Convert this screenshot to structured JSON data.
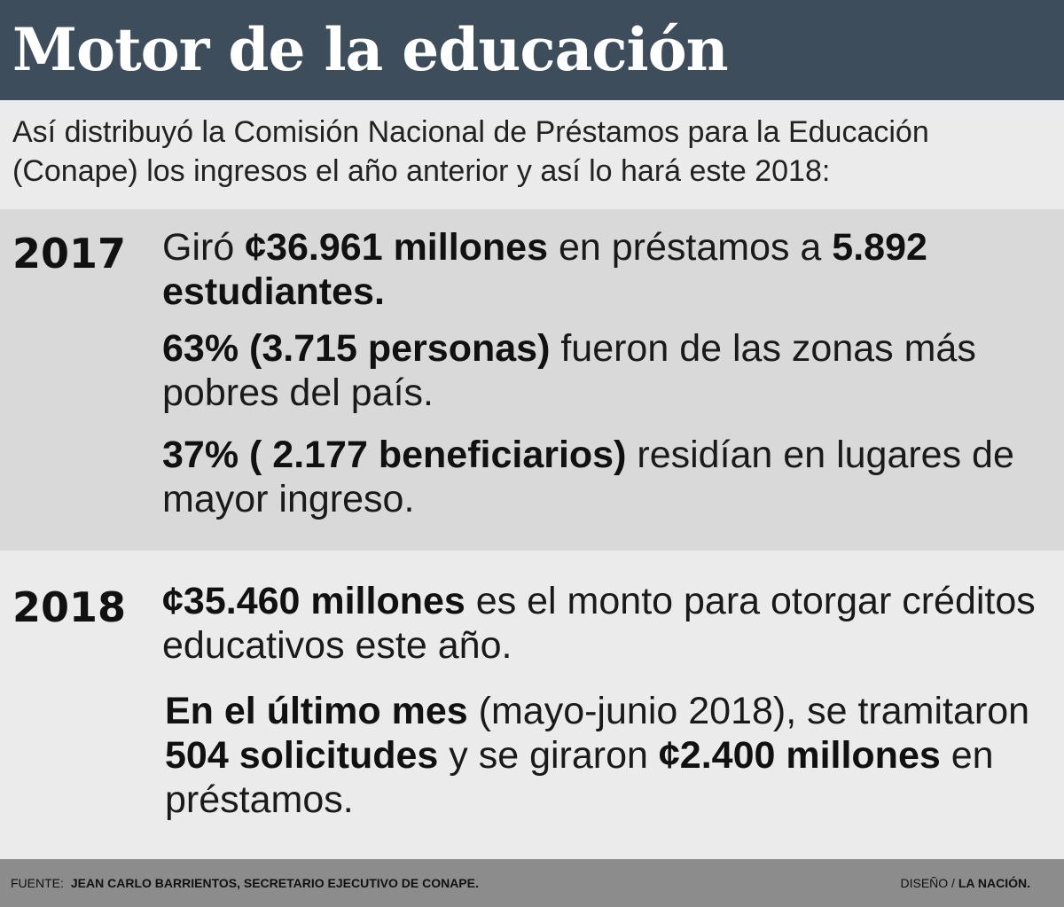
{
  "header": {
    "title": "Motor de la educación"
  },
  "intro": {
    "text": "Así distribuyó la Comisión Nacional de Préstamos para la Educación (Conape) los ingresos el año anterior y así lo hará este 2018:"
  },
  "year_2017": {
    "year": "2017",
    "p1": {
      "a": "Giró ",
      "b": "¢36.961 millones",
      "c": " en préstamos a ",
      "d": "5.892 estudiantes."
    },
    "p2": {
      "a": "63% (3.715 personas)",
      "b": " fueron de las zonas más pobres del país."
    },
    "p3": {
      "a": "37% ( 2.177 beneficiarios)",
      "b": " residían en lugares de mayor ingreso."
    }
  },
  "year_2018": {
    "year": "2018",
    "p1": {
      "a": "¢35.460 millones",
      "b": " es el monto para otorgar créditos educativos este año."
    },
    "p2": {
      "a": "En el último mes",
      "b": " (mayo-junio 2018), se tramitaron ",
      "c": "504 solicitudes",
      "d": " y se giraron ",
      "e": "¢2.400 millones",
      "f": " en préstamos."
    }
  },
  "footer": {
    "source_label": "FUENTE:",
    "source_text": "JEAN CARLO BARRIENTOS, SECRETARIO EJECUTIVO DE CONAPE.",
    "design_label": "DISEÑO / ",
    "design_text": "LA NACIÓN."
  }
}
